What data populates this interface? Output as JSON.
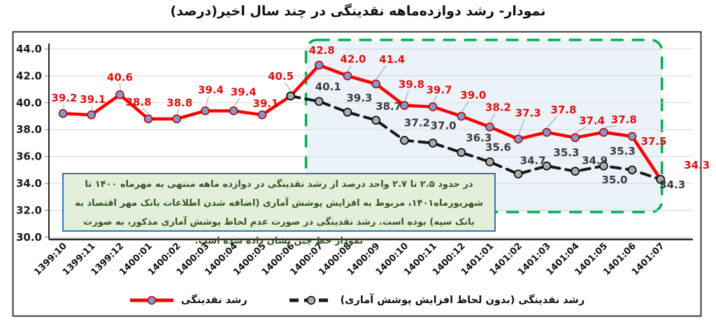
{
  "title": "نمودار- رشد دوازده‌ماهه نقدینگی در چند سال اخیر(درصد)",
  "chart_data": {
    "type": "line",
    "categories": [
      "1399:10",
      "1399:11",
      "1399:12",
      "1400:01",
      "1400:02",
      "1400:03",
      "1400:04",
      "1400:05",
      "1400:06",
      "1400:07",
      "1400:08",
      "1400:09",
      "1400:10",
      "1400:11",
      "1400:12",
      "1401:01",
      "1401:02",
      "1401:03",
      "1401:04",
      "1401:05",
      "1401:06",
      "1401:07"
    ],
    "series": [
      {
        "name": "رشد نقدینگی",
        "start_index": 0,
        "values": [
          39.2,
          39.1,
          40.6,
          38.8,
          38.8,
          39.4,
          39.4,
          39.1,
          40.5,
          42.8,
          42.0,
          41.4,
          39.8,
          39.7,
          39.0,
          38.2,
          37.3,
          37.8,
          37.4,
          37.8,
          37.5,
          34.3
        ],
        "color": "#fe0000",
        "dashed": false,
        "marker_fill": "#7d9bd1",
        "marker_edge": "#c00000",
        "label_color": "#e01010"
      },
      {
        "name": "رشد نقدینگی (بدون لحاظ افزایش پوشش آماری)",
        "start_index": 8,
        "values": [
          40.5,
          40.1,
          39.3,
          38.7,
          37.2,
          37.0,
          36.3,
          35.6,
          34.7,
          35.3,
          34.9,
          35.3,
          35.0,
          34.3
        ],
        "color": "#171717",
        "dashed": true,
        "marker_fill": "#ababab",
        "marker_edge": "#000000",
        "label_color": "#3a3a3a"
      }
    ],
    "ylim": [
      30.0,
      44.0
    ],
    "y_ticks": [
      "44.0",
      "42.0",
      "40.0",
      "38.0",
      "36.0",
      "34.0",
      "32.0",
      "30.0"
    ],
    "grid": true,
    "legend_position": "bottom",
    "highlight_box": {
      "from_category": "1400:06",
      "to_category": "1401:07",
      "border_color": "#00b050",
      "fill_color": "#ebf2f9"
    }
  },
  "annotation": {
    "text": "در حدود ۲.۵ تا ۲.۷ واحد درصد از رشد نقدینگی در دوازده ماهه منتهی به مهرماه ۱۴۰۰ تا شهریورماه۱۴۰۱، مربوط به افزایش پوشش آماری (اضافه شدن اطلاعات بانک مهر اقتصاد به بانک سپه) بوده است. رشد نقدینگی در صورت عدم لحاظ پوشش آماری مذکور، به صورت نمودار خط چین نشان داده شده است.",
    "fill": "#e2efda",
    "border": "#2e75b6",
    "text_color": "#375623"
  },
  "colors": {
    "gridline": "#d7d7d7",
    "axis": "#262626",
    "frame": "#3c3c3c",
    "leader_line": "#9a9a9a"
  }
}
